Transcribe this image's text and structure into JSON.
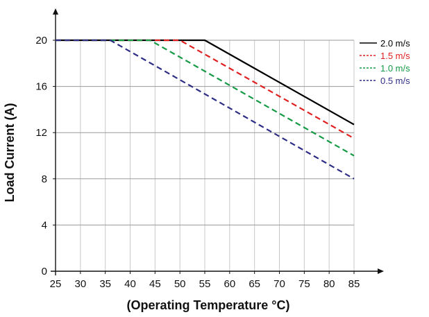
{
  "chart_data": {
    "type": "line",
    "xlabel": "(Operating Temperature °C)",
    "ylabel": "Load Current  (A)",
    "xlim": [
      25,
      85
    ],
    "ylim": [
      0,
      20
    ],
    "xticks": [
      25,
      30,
      35,
      40,
      45,
      50,
      55,
      60,
      65,
      70,
      75,
      80,
      85
    ],
    "yticks": [
      0,
      4,
      8,
      12,
      16,
      20
    ],
    "grid": true,
    "legend_position": "right",
    "series": [
      {
        "name": "2.0 m/s",
        "color": "#000000",
        "style": "solid",
        "x": [
          25,
          55,
          85
        ],
        "y": [
          20,
          20,
          12.7
        ]
      },
      {
        "name": "1.5 m/s",
        "color": "#e02020",
        "style": "dashed",
        "x": [
          25,
          50,
          85
        ],
        "y": [
          20,
          20,
          11.5
        ]
      },
      {
        "name": "1.0 m/s",
        "color": "#169a46",
        "style": "dashed",
        "x": [
          25,
          44,
          85
        ],
        "y": [
          20,
          20,
          10
        ]
      },
      {
        "name": "0.5 m/s",
        "color": "#2d2d85",
        "style": "dashed",
        "x": [
          25,
          36,
          85
        ],
        "y": [
          20,
          20,
          8
        ]
      }
    ]
  }
}
